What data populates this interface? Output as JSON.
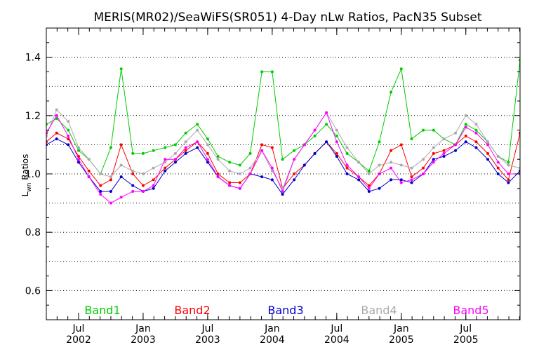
{
  "chart_data": {
    "type": "line",
    "title": "MERIS(MR02)/SeaWiFS(SR051) 4-Day nLw Ratios, PacN35 Subset",
    "ylabel_main": "L",
    "ylabel_sub": "wn",
    "ylabel_rest": " Ratios",
    "ylim": [
      0.5,
      1.5
    ],
    "yticks": [
      {
        "v": 0.6,
        "label": "0.6"
      },
      {
        "v": 0.8,
        "label": "0.8"
      },
      {
        "v": 1.0,
        "label": "1.0"
      },
      {
        "v": 1.2,
        "label": "1.2"
      },
      {
        "v": 1.4,
        "label": "1.4"
      }
    ],
    "grid_lines": [
      0.6,
      0.7,
      0.8,
      0.9,
      1.0,
      1.1,
      1.2,
      1.3,
      1.4
    ],
    "xlim": [
      2002.25,
      2005.92
    ],
    "xticks": [
      {
        "v": 2002.5,
        "month": "Jul",
        "year": "2002"
      },
      {
        "v": 2003.0,
        "month": "Jan",
        "year": "2003"
      },
      {
        "v": 2003.5,
        "month": "Jul",
        "year": "2003"
      },
      {
        "v": 2004.0,
        "month": "Jan",
        "year": "2004"
      },
      {
        "v": 2004.5,
        "month": "Jul",
        "year": "2004"
      },
      {
        "v": 2005.0,
        "month": "Jan",
        "year": "2005"
      },
      {
        "v": 2005.5,
        "month": "Jul",
        "year": "2005"
      }
    ],
    "x": [
      2002.25,
      2002.33,
      2002.42,
      2002.5,
      2002.58,
      2002.67,
      2002.75,
      2002.83,
      2002.92,
      2003.0,
      2003.08,
      2003.17,
      2003.25,
      2003.33,
      2003.42,
      2003.5,
      2003.58,
      2003.67,
      2003.75,
      2003.83,
      2003.92,
      2004.0,
      2004.08,
      2004.17,
      2004.25,
      2004.33,
      2004.42,
      2004.5,
      2004.58,
      2004.67,
      2004.75,
      2004.83,
      2004.92,
      2005.0,
      2005.08,
      2005.17,
      2005.25,
      2005.33,
      2005.42,
      2005.5,
      2005.58,
      2005.67,
      2005.75,
      2005.83,
      2005.92
    ],
    "series": [
      {
        "name": "Band1",
        "color": "#00cc00",
        "values": [
          1.17,
          1.19,
          1.15,
          1.08,
          1.05,
          1.0,
          1.09,
          1.36,
          1.07,
          1.07,
          1.08,
          1.09,
          1.1,
          1.14,
          1.17,
          1.12,
          1.06,
          1.04,
          1.03,
          1.07,
          1.35,
          1.35,
          1.05,
          1.08,
          1.1,
          1.13,
          1.17,
          1.13,
          1.07,
          1.04,
          1.01,
          1.11,
          1.28,
          1.36,
          1.12,
          1.15,
          1.15,
          1.12,
          1.1,
          1.17,
          1.15,
          1.11,
          1.06,
          1.04,
          1.39
        ]
      },
      {
        "name": "Band2",
        "color": "#ff0000",
        "values": [
          1.11,
          1.14,
          1.12,
          1.06,
          1.01,
          0.96,
          0.98,
          1.1,
          1.0,
          0.96,
          0.98,
          1.02,
          1.05,
          1.08,
          1.11,
          1.07,
          1.0,
          0.97,
          0.97,
          1.0,
          1.1,
          1.09,
          0.95,
          1.0,
          1.03,
          1.07,
          1.11,
          1.07,
          1.02,
          0.99,
          0.96,
          1.0,
          1.08,
          1.1,
          0.99,
          1.02,
          1.07,
          1.08,
          1.1,
          1.13,
          1.11,
          1.07,
          1.02,
          0.98,
          1.14
        ]
      },
      {
        "name": "Band3",
        "color": "#0000cc",
        "values": [
          1.1,
          1.12,
          1.1,
          1.04,
          0.99,
          0.94,
          0.94,
          0.99,
          0.96,
          0.94,
          0.95,
          1.01,
          1.04,
          1.07,
          1.09,
          1.04,
          0.99,
          0.96,
          0.95,
          1.0,
          0.99,
          0.98,
          0.93,
          0.98,
          1.03,
          1.07,
          1.11,
          1.06,
          1.0,
          0.98,
          0.94,
          0.95,
          0.98,
          0.98,
          0.97,
          1.0,
          1.05,
          1.06,
          1.08,
          1.11,
          1.09,
          1.05,
          1.0,
          0.97,
          1.01
        ]
      },
      {
        "name": "Band4",
        "color": "#aaaaaa",
        "values": [
          1.13,
          1.22,
          1.18,
          1.09,
          1.05,
          1.0,
          0.99,
          1.03,
          1.01,
          1.0,
          1.02,
          1.04,
          1.07,
          1.11,
          1.15,
          1.1,
          1.05,
          1.01,
          1.0,
          1.02,
          1.08,
          1.01,
          0.95,
          1.05,
          1.1,
          1.15,
          1.21,
          1.15,
          1.09,
          1.04,
          1.0,
          1.03,
          1.04,
          1.03,
          1.02,
          1.05,
          1.09,
          1.12,
          1.14,
          1.2,
          1.17,
          1.11,
          1.06,
          1.03,
          1.02
        ]
      },
      {
        "name": "Band5",
        "color": "#ff00ff",
        "values": [
          1.14,
          1.2,
          1.13,
          1.05,
          0.99,
          0.93,
          0.9,
          0.92,
          0.94,
          0.94,
          0.96,
          1.05,
          1.05,
          1.09,
          1.11,
          1.05,
          0.99,
          0.96,
          0.95,
          1.0,
          1.08,
          1.02,
          0.94,
          1.05,
          1.1,
          1.15,
          1.21,
          1.11,
          1.03,
          0.99,
          0.95,
          1.0,
          1.02,
          0.97,
          0.98,
          1.0,
          1.04,
          1.07,
          1.1,
          1.16,
          1.14,
          1.1,
          1.04,
          1.0,
          1.0
        ]
      }
    ],
    "legend_placement": "bottom",
    "grid": true
  }
}
